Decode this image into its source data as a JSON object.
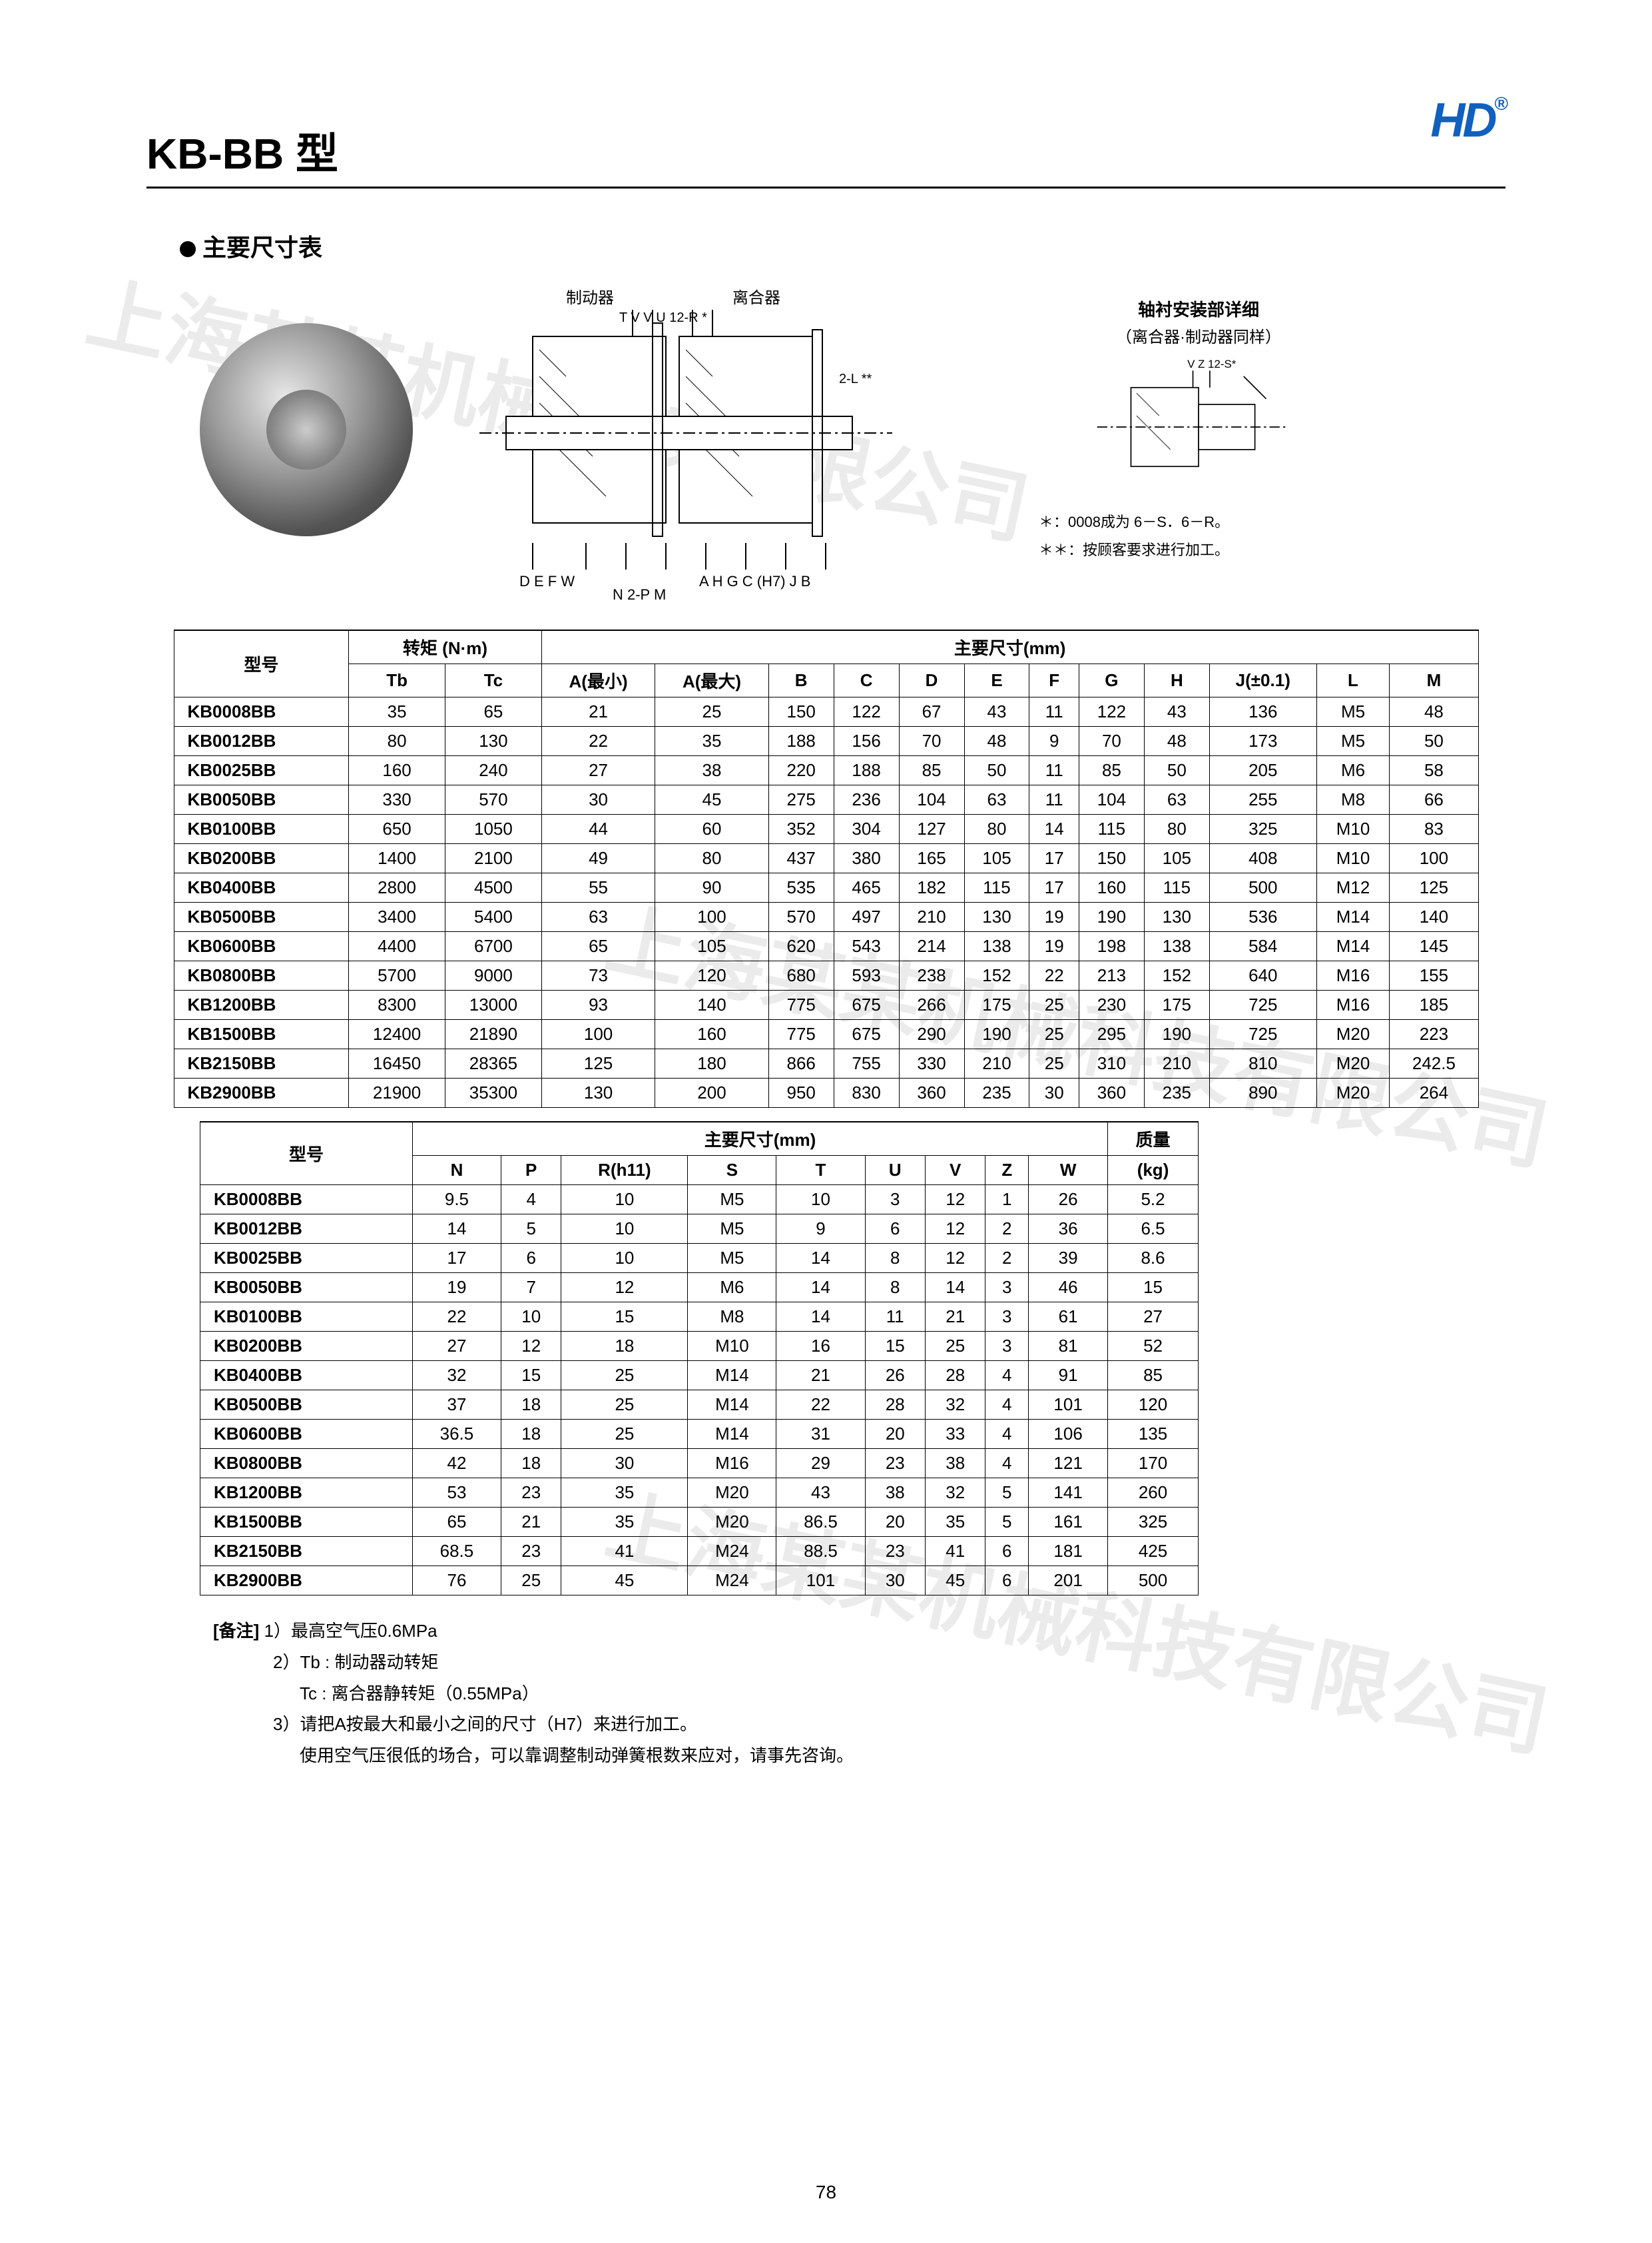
{
  "page": {
    "title": "KB-BB 型",
    "subtitle": "主要尺寸表",
    "logo_text": "HD",
    "logo_mark": "®",
    "page_number": "78"
  },
  "diagram_labels": {
    "brake": "制动器",
    "clutch": "离合器",
    "dims_left": "D E F W",
    "dims_mid": "N 2-P M",
    "dims_right": "A H G C (H7) J B",
    "top_marks": "T V    V U    12-R *",
    "detail_title": "轴衬安装部详细",
    "detail_sub": "（离合器·制动器同样）",
    "detail_marks": "V Z 12-S*",
    "note_star1": "＊：0008成为 6－S．6－R。",
    "note_star2": "＊＊：按顾客要求进行加工。",
    "two_l": "2-L **"
  },
  "table1": {
    "header_model": "型号",
    "header_torque": "转矩  (N·m)",
    "header_dims": "主要尺寸(mm)",
    "cols_torque": [
      "Tb",
      "Tc"
    ],
    "cols_dims": [
      "A(最小)",
      "A(最大)",
      "B",
      "C",
      "D",
      "E",
      "F",
      "G",
      "H",
      "J(±0.1)",
      "L",
      "M"
    ],
    "rows": [
      {
        "model": "KB0008BB",
        "tb": "35",
        "tc": "65",
        "d": [
          "21",
          "25",
          "150",
          "122",
          "67",
          "43",
          "11",
          "122",
          "43",
          "136",
          "M5",
          "48"
        ]
      },
      {
        "model": "KB0012BB",
        "tb": "80",
        "tc": "130",
        "d": [
          "22",
          "35",
          "188",
          "156",
          "70",
          "48",
          "9",
          "70",
          "48",
          "173",
          "M5",
          "50"
        ]
      },
      {
        "model": "KB0025BB",
        "tb": "160",
        "tc": "240",
        "d": [
          "27",
          "38",
          "220",
          "188",
          "85",
          "50",
          "11",
          "85",
          "50",
          "205",
          "M6",
          "58"
        ]
      },
      {
        "model": "KB0050BB",
        "tb": "330",
        "tc": "570",
        "d": [
          "30",
          "45",
          "275",
          "236",
          "104",
          "63",
          "11",
          "104",
          "63",
          "255",
          "M8",
          "66"
        ]
      },
      {
        "model": "KB0100BB",
        "tb": "650",
        "tc": "1050",
        "d": [
          "44",
          "60",
          "352",
          "304",
          "127",
          "80",
          "14",
          "115",
          "80",
          "325",
          "M10",
          "83"
        ]
      },
      {
        "model": "KB0200BB",
        "tb": "1400",
        "tc": "2100",
        "d": [
          "49",
          "80",
          "437",
          "380",
          "165",
          "105",
          "17",
          "150",
          "105",
          "408",
          "M10",
          "100"
        ]
      },
      {
        "model": "KB0400BB",
        "tb": "2800",
        "tc": "4500",
        "d": [
          "55",
          "90",
          "535",
          "465",
          "182",
          "115",
          "17",
          "160",
          "115",
          "500",
          "M12",
          "125"
        ]
      },
      {
        "model": "KB0500BB",
        "tb": "3400",
        "tc": "5400",
        "d": [
          "63",
          "100",
          "570",
          "497",
          "210",
          "130",
          "19",
          "190",
          "130",
          "536",
          "M14",
          "140"
        ]
      },
      {
        "model": "KB0600BB",
        "tb": "4400",
        "tc": "6700",
        "d": [
          "65",
          "105",
          "620",
          "543",
          "214",
          "138",
          "19",
          "198",
          "138",
          "584",
          "M14",
          "145"
        ]
      },
      {
        "model": "KB0800BB",
        "tb": "5700",
        "tc": "9000",
        "d": [
          "73",
          "120",
          "680",
          "593",
          "238",
          "152",
          "22",
          "213",
          "152",
          "640",
          "M16",
          "155"
        ]
      },
      {
        "model": "KB1200BB",
        "tb": "8300",
        "tc": "13000",
        "d": [
          "93",
          "140",
          "775",
          "675",
          "266",
          "175",
          "25",
          "230",
          "175",
          "725",
          "M16",
          "185"
        ]
      },
      {
        "model": "KB1500BB",
        "tb": "12400",
        "tc": "21890",
        "d": [
          "100",
          "160",
          "775",
          "675",
          "290",
          "190",
          "25",
          "295",
          "190",
          "725",
          "M20",
          "223"
        ]
      },
      {
        "model": "KB2150BB",
        "tb": "16450",
        "tc": "28365",
        "d": [
          "125",
          "180",
          "866",
          "755",
          "330",
          "210",
          "25",
          "310",
          "210",
          "810",
          "M20",
          "242.5"
        ]
      },
      {
        "model": "KB2900BB",
        "tb": "21900",
        "tc": "35300",
        "d": [
          "130",
          "200",
          "950",
          "830",
          "360",
          "235",
          "30",
          "360",
          "235",
          "890",
          "M20",
          "264"
        ]
      }
    ]
  },
  "table2": {
    "header_model": "型号",
    "header_dims": "主要尺寸(mm)",
    "header_mass": "质量",
    "header_mass_unit": "(kg)",
    "cols": [
      "N",
      "P",
      "R(h11)",
      "S",
      "T",
      "U",
      "V",
      "Z",
      "W"
    ],
    "rows": [
      {
        "model": "KB0008BB",
        "d": [
          "9.5",
          "4",
          "10",
          "M5",
          "10",
          "3",
          "12",
          "1",
          "26"
        ],
        "kg": "5.2"
      },
      {
        "model": "KB0012BB",
        "d": [
          "14",
          "5",
          "10",
          "M5",
          "9",
          "6",
          "12",
          "2",
          "36"
        ],
        "kg": "6.5"
      },
      {
        "model": "KB0025BB",
        "d": [
          "17",
          "6",
          "10",
          "M5",
          "14",
          "8",
          "12",
          "2",
          "39"
        ],
        "kg": "8.6"
      },
      {
        "model": "KB0050BB",
        "d": [
          "19",
          "7",
          "12",
          "M6",
          "14",
          "8",
          "14",
          "3",
          "46"
        ],
        "kg": "15"
      },
      {
        "model": "KB0100BB",
        "d": [
          "22",
          "10",
          "15",
          "M8",
          "14",
          "11",
          "21",
          "3",
          "61"
        ],
        "kg": "27"
      },
      {
        "model": "KB0200BB",
        "d": [
          "27",
          "12",
          "18",
          "M10",
          "16",
          "15",
          "25",
          "3",
          "81"
        ],
        "kg": "52"
      },
      {
        "model": "KB0400BB",
        "d": [
          "32",
          "15",
          "25",
          "M14",
          "21",
          "26",
          "28",
          "4",
          "91"
        ],
        "kg": "85"
      },
      {
        "model": "KB0500BB",
        "d": [
          "37",
          "18",
          "25",
          "M14",
          "22",
          "28",
          "32",
          "4",
          "101"
        ],
        "kg": "120"
      },
      {
        "model": "KB0600BB",
        "d": [
          "36.5",
          "18",
          "25",
          "M14",
          "31",
          "20",
          "33",
          "4",
          "106"
        ],
        "kg": "135"
      },
      {
        "model": "KB0800BB",
        "d": [
          "42",
          "18",
          "30",
          "M16",
          "29",
          "23",
          "38",
          "4",
          "121"
        ],
        "kg": "170"
      },
      {
        "model": "KB1200BB",
        "d": [
          "53",
          "23",
          "35",
          "M20",
          "43",
          "38",
          "32",
          "5",
          "141"
        ],
        "kg": "260"
      },
      {
        "model": "KB1500BB",
        "d": [
          "65",
          "21",
          "35",
          "M20",
          "86.5",
          "20",
          "35",
          "5",
          "161"
        ],
        "kg": "325"
      },
      {
        "model": "KB2150BB",
        "d": [
          "68.5",
          "23",
          "41",
          "M24",
          "88.5",
          "23",
          "41",
          "6",
          "181"
        ],
        "kg": "425"
      },
      {
        "model": "KB2900BB",
        "d": [
          "76",
          "25",
          "45",
          "M24",
          "101",
          "30",
          "45",
          "6",
          "201"
        ],
        "kg": "500"
      }
    ]
  },
  "notes": {
    "label": "[备注]",
    "n1": "1）最高空气压0.6MPa",
    "n2": "2）Tb : 制动器动转矩",
    "n2b": "Tc : 离合器静转矩（0.55MPa）",
    "n3": "3）请把A按最大和最小之间的尺寸（H7）来进行加工。",
    "n3b": "使用空气压很低的场合，可以靠调整制动弹簧根数来应对，请事先咨询。"
  },
  "watermarks": {
    "company": "上海某某机械科技有限公司"
  }
}
